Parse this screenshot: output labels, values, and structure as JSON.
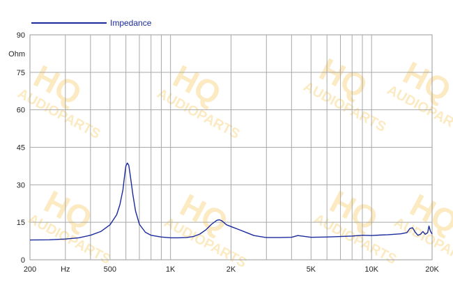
{
  "chart_data": {
    "type": "line",
    "x_scale": "log",
    "xlim": [
      200,
      20000
    ],
    "ylim": [
      0,
      90
    ],
    "ylabel": "Ohm",
    "y_ticks": [
      0,
      15,
      30,
      45,
      60,
      75,
      90
    ],
    "x_ticks": [
      {
        "value": 200,
        "label": "200"
      },
      {
        "value": 300,
        "label": "Hz"
      },
      {
        "value": 500,
        "label": "500"
      },
      {
        "value": 1000,
        "label": "1K"
      },
      {
        "value": 2000,
        "label": "2K"
      },
      {
        "value": 5000,
        "label": "5K"
      },
      {
        "value": 10000,
        "label": "10K"
      },
      {
        "value": 20000,
        "label": "20K"
      }
    ],
    "grid": true,
    "legend_position": "top-left",
    "series": [
      {
        "name": "Impedance",
        "color": "#1a2a9c",
        "points": [
          [
            200,
            7.9
          ],
          [
            250,
            8.0
          ],
          [
            300,
            8.3
          ],
          [
            350,
            8.8
          ],
          [
            400,
            9.8
          ],
          [
            450,
            11.3
          ],
          [
            500,
            14.0
          ],
          [
            540,
            18.0
          ],
          [
            560,
            22.0
          ],
          [
            580,
            28.0
          ],
          [
            590,
            33.0
          ],
          [
            600,
            37.5
          ],
          [
            610,
            38.7
          ],
          [
            620,
            37.8
          ],
          [
            630,
            34.0
          ],
          [
            650,
            26.0
          ],
          [
            670,
            19.5
          ],
          [
            700,
            14.2
          ],
          [
            750,
            11.0
          ],
          [
            800,
            9.8
          ],
          [
            900,
            9.1
          ],
          [
            1000,
            8.8
          ],
          [
            1100,
            8.8
          ],
          [
            1200,
            8.9
          ],
          [
            1300,
            9.3
          ],
          [
            1400,
            10.3
          ],
          [
            1500,
            12.0
          ],
          [
            1600,
            14.2
          ],
          [
            1700,
            15.8
          ],
          [
            1750,
            16.0
          ],
          [
            1800,
            15.6
          ],
          [
            1900,
            14.0
          ],
          [
            2000,
            13.3
          ],
          [
            2200,
            12.0
          ],
          [
            2400,
            10.8
          ],
          [
            2600,
            9.7
          ],
          [
            3000,
            8.9
          ],
          [
            3500,
            8.9
          ],
          [
            4000,
            9.0
          ],
          [
            4300,
            9.7
          ],
          [
            4500,
            9.5
          ],
          [
            5000,
            9.0
          ],
          [
            6000,
            9.1
          ],
          [
            7000,
            9.3
          ],
          [
            8000,
            9.5
          ],
          [
            9000,
            9.8
          ],
          [
            10000,
            9.7
          ],
          [
            11000,
            9.9
          ],
          [
            12000,
            10.0
          ],
          [
            14000,
            10.4
          ],
          [
            15000,
            10.9
          ],
          [
            15500,
            12.5
          ],
          [
            16000,
            12.8
          ],
          [
            16500,
            11.0
          ],
          [
            17000,
            9.8
          ],
          [
            17500,
            10.2
          ],
          [
            18000,
            11.3
          ],
          [
            18500,
            10.2
          ],
          [
            19000,
            10.8
          ],
          [
            19300,
            13.5
          ],
          [
            19600,
            11.5
          ],
          [
            20000,
            10.3
          ]
        ]
      }
    ]
  },
  "watermark": {
    "big": "HQ",
    "small": "AUDIOPARTS",
    "color": "#f7d27a"
  }
}
